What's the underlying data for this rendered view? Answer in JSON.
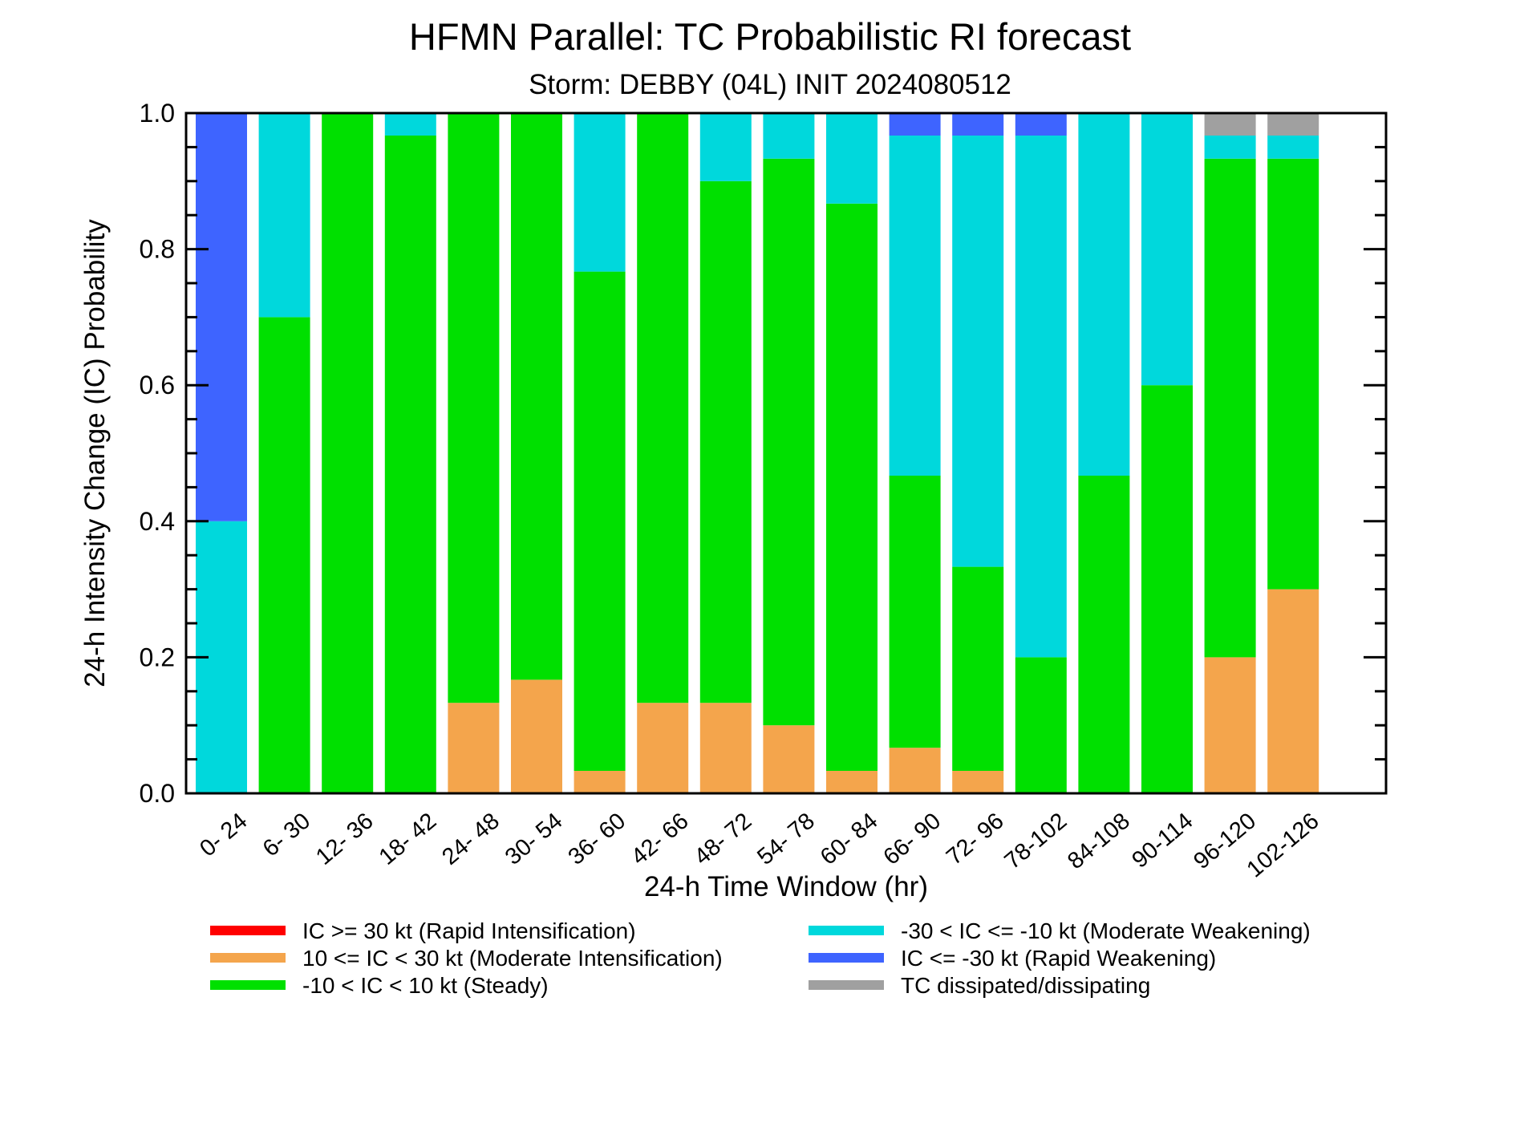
{
  "chart_data": {
    "type": "bar",
    "stacked": true,
    "title": "HFMN Parallel: TC Probabilistic RI forecast",
    "subtitle": "Storm: DEBBY (04L) INIT 2024080512",
    "xlabel": "24-h Time Window (hr)",
    "ylabel": "24-h Intensity Change (IC) Probability",
    "ylim": [
      0,
      1
    ],
    "yticks": [
      "0.0",
      "0.2",
      "0.4",
      "0.6",
      "0.8",
      "1.0"
    ],
    "grid": false,
    "legend_position": "bottom",
    "categories": [
      "0- 24",
      "6- 30",
      "12- 36",
      "18- 42",
      "24- 48",
      "30- 54",
      "36- 60",
      "42- 66",
      "48- 72",
      "54- 78",
      "60- 84",
      "66- 90",
      "72- 96",
      "78-102",
      "84-108",
      "90-114",
      "96-120",
      "102-126"
    ],
    "series": [
      {
        "name": "IC >= 30 kt (Rapid Intensification)",
        "color": "#ff0000",
        "values": [
          0,
          0,
          0,
          0,
          0,
          0,
          0,
          0,
          0,
          0,
          0,
          0,
          0,
          0,
          0,
          0,
          0,
          0
        ]
      },
      {
        "name": "10 <= IC < 30 kt (Moderate Intensification)",
        "color": "#f4a54c",
        "values": [
          0,
          0,
          0,
          0,
          0.133,
          0.167,
          0.033,
          0.133,
          0.133,
          0.1,
          0.033,
          0.067,
          0.033,
          0,
          0,
          0,
          0.2,
          0.3
        ]
      },
      {
        "name": "-10 < IC < 10 kt (Steady)",
        "color": "#00e000",
        "values": [
          0,
          0.7,
          1.0,
          0.967,
          0.867,
          0.833,
          0.734,
          0.867,
          0.767,
          0.833,
          0.834,
          0.4,
          0.3,
          0.2,
          0.467,
          0.6,
          0.733,
          0.633
        ]
      },
      {
        "name": "-30 < IC <= -10 kt (Moderate Weakening)",
        "color": "#00d8dc",
        "values": [
          0.4,
          0.3,
          0,
          0.033,
          0,
          0,
          0.233,
          0,
          0.1,
          0.067,
          0.133,
          0.5,
          0.634,
          0.767,
          0.533,
          0.4,
          0.034,
          0.034
        ]
      },
      {
        "name": "IC <= -30 kt (Rapid Weakening)",
        "color": "#3e64ff",
        "values": [
          0.6,
          0,
          0,
          0,
          0,
          0,
          0,
          0,
          0,
          0,
          0,
          0.033,
          0.033,
          0.033,
          0,
          0,
          0,
          0
        ]
      },
      {
        "name": "TC dissipated/dissipating",
        "color": "#a0a0a0",
        "values": [
          0,
          0,
          0,
          0,
          0,
          0,
          0,
          0,
          0,
          0,
          0,
          0,
          0,
          0,
          0,
          0,
          0.033,
          0.033
        ]
      }
    ]
  }
}
